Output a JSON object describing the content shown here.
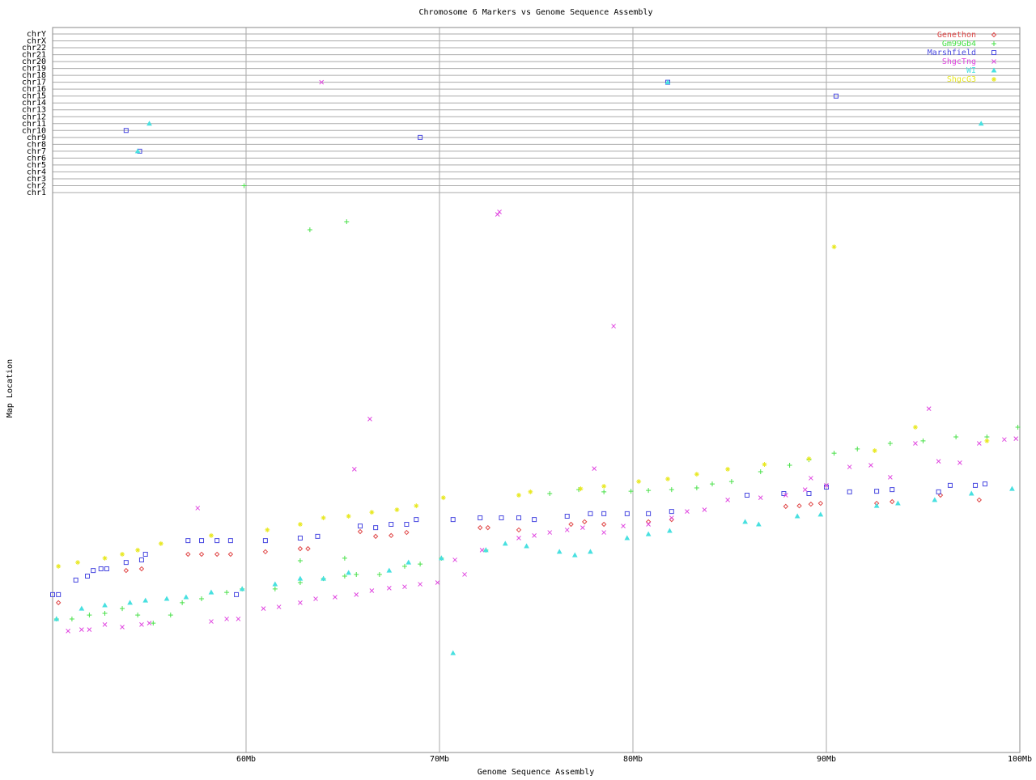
{
  "chart_data": {
    "type": "scatter",
    "title": "Chromosome 6 Markers vs Genome Sequence Assembly",
    "x_label": "Genome Sequence Assembly",
    "y_label": "Map Location",
    "xlim": [
      50,
      100
    ],
    "xticks": [
      {
        "value": 60,
        "label": "60Mb"
      },
      {
        "value": 70,
        "label": "70Mb"
      },
      {
        "value": 80,
        "label": "80Mb"
      },
      {
        "value": 90,
        "label": "90Mb"
      },
      {
        "value": 100,
        "label": "100Mb"
      }
    ],
    "ylim": [
      0,
      200
    ],
    "chromosomes": [
      "chrY",
      "chrX",
      "chr22",
      "chr21",
      "chr20",
      "chr19",
      "chr18",
      "chr17",
      "chr16",
      "chr15",
      "chr14",
      "chr13",
      "chr12",
      "chr11",
      "chr10",
      "chr9",
      "chr8",
      "chr7",
      "chr6",
      "chr5",
      "chr4",
      "chr3",
      "chr2",
      "chr1"
    ],
    "grid": true,
    "legend": "top-right",
    "series": [
      {
        "name": "Genethon",
        "color": "#e04848",
        "marker": "diamond",
        "x": [
          50.3,
          53.8,
          54.6,
          57.0,
          57.7,
          58.5,
          59.2,
          61.0,
          62.8,
          63.2,
          65.9,
          66.7,
          67.5,
          68.3,
          72.1,
          72.5,
          74.1,
          76.8,
          77.5,
          78.5,
          80.8,
          82.0,
          87.9,
          88.6,
          89.2,
          89.7,
          92.6,
          93.4,
          95.9,
          97.9
        ],
        "values": [
          53.5,
          65.0,
          65.6,
          70.8,
          70.8,
          70.8,
          70.8,
          71.7,
          72.8,
          72.8,
          78.9,
          77.2,
          77.5,
          78.6,
          80.3,
          80.3,
          79.5,
          81.5,
          82.4,
          81.5,
          82.4,
          83.2,
          87.9,
          88.1,
          88.7,
          89.0,
          89.0,
          89.6,
          91.9,
          90.2
        ],
        "off_chromosome": {
          "x": [],
          "chromosomes": []
        }
      },
      {
        "name": "Gm99Gb4",
        "color": "#48e048",
        "marker": "plus",
        "x": [
          50.2,
          51.0,
          51.9,
          52.7,
          53.6,
          54.4,
          55.2,
          56.1,
          56.7,
          57.7,
          59.0,
          59.8,
          61.5,
          62.8,
          64.0,
          65.1,
          65.7,
          66.9,
          68.2,
          69.0,
          70.1,
          72.4,
          62.8,
          65.1,
          74.1,
          75.7,
          77.2,
          78.5,
          79.9,
          80.8,
          82.0,
          83.3,
          84.1,
          85.1,
          86.6,
          88.1,
          89.1,
          90.4,
          91.6,
          93.3,
          95.0,
          96.7,
          98.3,
          99.9,
          63.3,
          65.2
        ],
        "values": [
          47.7,
          47.7,
          49.1,
          49.7,
          51.4,
          49.1,
          46.2,
          49.1,
          53.5,
          54.9,
          57.2,
          58.4,
          58.4,
          60.7,
          62.1,
          63.0,
          63.6,
          63.6,
          66.5,
          67.3,
          69.4,
          72.3,
          68.5,
          69.4,
          91.9,
          92.5,
          93.9,
          93.1,
          93.3,
          93.6,
          93.9,
          94.5,
          95.9,
          96.8,
          100.3,
          102.6,
          104.6,
          106.9,
          108.4,
          110.4,
          111.3,
          112.7,
          112.7,
          116.2,
          186.7,
          189.6
        ],
        "off_chromosome": {
          "x": [
            59.9
          ],
          "chromosomes": [
            "chr2"
          ]
        }
      },
      {
        "name": "Marshfield",
        "color": "#4848e0",
        "marker": "square",
        "x": [
          50.0,
          50.3,
          51.2,
          51.8,
          52.1,
          52.5,
          52.8,
          53.8,
          54.6,
          54.8,
          57.0,
          57.7,
          58.5,
          59.2,
          59.5,
          61.0,
          62.8,
          63.7,
          65.9,
          66.7,
          67.5,
          68.3,
          68.8,
          70.7,
          72.1,
          73.2,
          74.1,
          74.9,
          76.6,
          77.8,
          78.5,
          79.7,
          80.8,
          82.0,
          85.9,
          87.8,
          89.1,
          90.0,
          91.2,
          92.6,
          93.4,
          95.8,
          96.4,
          97.7,
          98.2
        ],
        "values": [
          56.4,
          56.4,
          61.6,
          63.0,
          65.0,
          65.6,
          65.6,
          67.9,
          68.8,
          70.8,
          75.7,
          75.7,
          75.7,
          75.7,
          56.4,
          75.7,
          76.6,
          77.2,
          80.9,
          80.3,
          81.5,
          81.5,
          83.2,
          83.2,
          83.8,
          83.8,
          83.8,
          83.2,
          84.4,
          85.3,
          85.3,
          85.3,
          85.3,
          86.1,
          91.9,
          92.5,
          92.5,
          94.8,
          93.1,
          93.3,
          93.9,
          93.1,
          95.4,
          95.4,
          95.9
        ],
        "off_chromosome": {
          "x": [
            53.8,
            54.5,
            69.0,
            81.8,
            90.5
          ],
          "chromosomes": [
            "chr10",
            "chr7",
            "chr9",
            "chr17",
            "chr15"
          ]
        }
      },
      {
        "name": "ShgcTng",
        "color": "#e048e0",
        "marker": "cross",
        "x": [
          50.8,
          51.5,
          51.9,
          52.7,
          53.6,
          54.6,
          55.0,
          58.2,
          59.0,
          59.6,
          60.9,
          61.7,
          62.8,
          63.6,
          64.6,
          65.7,
          66.5,
          67.4,
          68.2,
          69.0,
          69.9,
          70.8,
          71.3,
          72.2,
          74.1,
          74.9,
          75.7,
          76.6,
          77.4,
          78.5,
          79.5,
          80.8,
          82.0,
          82.8,
          83.7,
          84.9,
          86.6,
          87.9,
          88.9,
          90.0,
          91.2,
          92.3,
          93.3,
          94.6,
          95.8,
          96.9,
          97.9,
          99.2,
          99.8,
          57.5,
          66.4,
          65.6,
          73.0,
          73.1,
          79.0,
          78.0,
          95.3,
          89.2
        ],
        "values": [
          43.4,
          43.9,
          43.9,
          45.7,
          44.8,
          45.7,
          46.2,
          46.8,
          47.7,
          47.7,
          51.4,
          52.0,
          53.5,
          54.9,
          55.5,
          56.4,
          57.8,
          58.7,
          59.2,
          60.1,
          60.7,
          68.8,
          63.6,
          72.3,
          76.6,
          77.5,
          78.6,
          79.5,
          80.3,
          78.6,
          80.9,
          81.5,
          83.8,
          86.1,
          86.7,
          90.2,
          91.0,
          91.9,
          93.9,
          95.4,
          102.0,
          102.6,
          98.3,
          110.4,
          104.0,
          103.5,
          110.4,
          111.8,
          112.1,
          87.3,
          119.1,
          101.2,
          192.2,
          193.1,
          152.3,
          101.4,
          122.8,
          98.0
        ],
        "off_chromosome": {
          "x": [
            63.9
          ],
          "chromosomes": [
            "chr17"
          ]
        }
      },
      {
        "name": "WI",
        "color": "#48e0e0",
        "marker": "triangle",
        "x": [
          50.2,
          51.5,
          52.7,
          54.0,
          54.8,
          55.9,
          56.9,
          58.2,
          59.8,
          61.5,
          62.8,
          64.0,
          65.3,
          67.4,
          68.4,
          70.1,
          70.7,
          72.4,
          73.4,
          74.5,
          76.2,
          77.0,
          77.8,
          79.7,
          80.8,
          81.9,
          85.8,
          86.5,
          88.5,
          89.7,
          92.6,
          93.7,
          95.6,
          97.5,
          99.6
        ],
        "values": [
          47.7,
          51.4,
          52.6,
          53.5,
          54.3,
          54.9,
          55.5,
          57.2,
          58.4,
          60.1,
          62.1,
          62.1,
          64.2,
          65.0,
          67.9,
          69.4,
          35.5,
          72.3,
          74.6,
          73.7,
          71.7,
          70.5,
          71.7,
          76.6,
          78.0,
          79.2,
          82.4,
          81.5,
          84.4,
          85.0,
          88.1,
          89.0,
          90.2,
          92.5,
          94.2
        ],
        "off_chromosome": {
          "x": [
            54.4,
            55.0,
            81.8,
            98.0
          ],
          "chromosomes": [
            "chr7",
            "chr11",
            "chr17",
            "chr11"
          ]
        }
      },
      {
        "name": "ShgcG3",
        "color": "#e8e820",
        "marker": "star",
        "x": [
          50.3,
          51.3,
          52.7,
          53.6,
          54.4,
          55.6,
          58.2,
          61.1,
          62.8,
          64.0,
          65.3,
          66.5,
          67.8,
          68.8,
          70.2,
          74.1,
          74.7,
          77.3,
          78.5,
          80.3,
          81.8,
          83.3,
          84.9,
          86.8,
          89.1,
          90.4,
          92.5,
          94.6,
          98.3
        ],
        "values": [
          66.5,
          67.9,
          69.4,
          70.8,
          72.3,
          74.6,
          77.5,
          79.5,
          81.5,
          83.8,
          84.4,
          85.8,
          86.7,
          88.1,
          91.0,
          91.9,
          93.1,
          94.2,
          95.1,
          96.8,
          97.7,
          99.4,
          101.2,
          102.9,
          104.9,
          180.6,
          107.8,
          116.2,
          111.3
        ],
        "off_chromosome": {
          "x": [],
          "chromosomes": []
        }
      }
    ]
  }
}
